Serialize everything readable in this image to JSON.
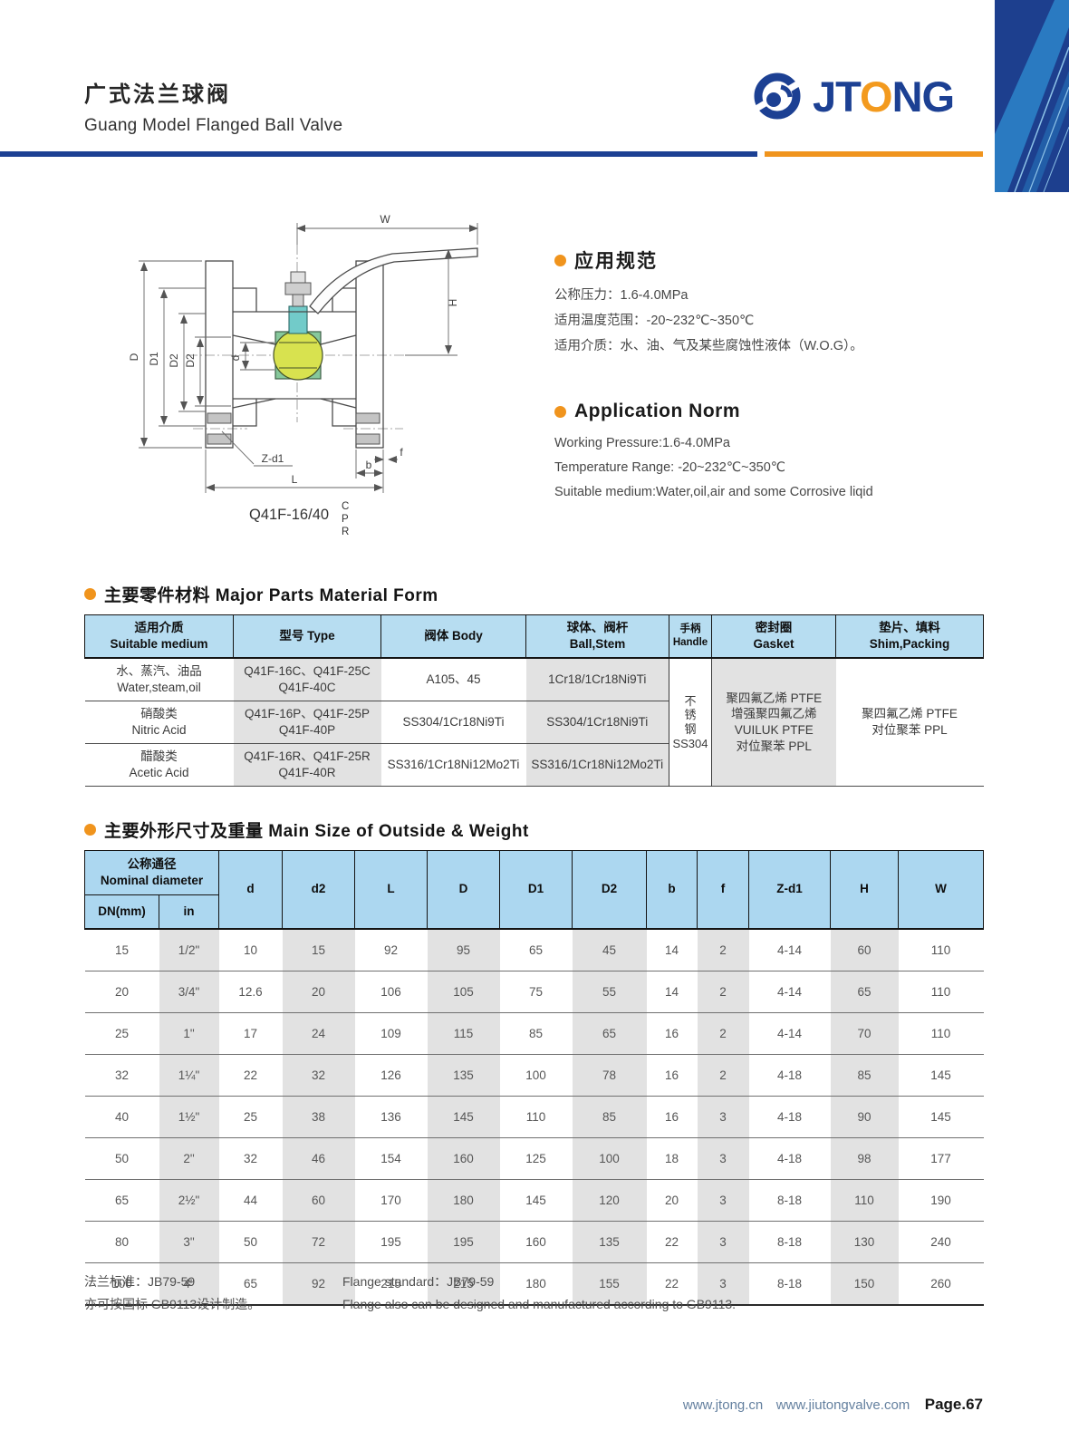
{
  "header": {
    "title_zh": "广式法兰球阀",
    "title_en": "Guang Model Flanged Ball Valve",
    "brand": {
      "jt": "JT",
      "o": "O",
      "ng": "NG"
    }
  },
  "colors": {
    "brand_blue": "#1c4093",
    "brand_orange": "#f0941d",
    "table1_header_blue": "#b7ddf1",
    "table2_header_blue": "#acd7f0",
    "cell_gray": "#e2e2e2"
  },
  "drawing": {
    "caption": "Q41F-16/40",
    "caption_stack": [
      "C",
      "P",
      "R"
    ],
    "dim_labels": {
      "w": "W",
      "h": "H",
      "d": "D",
      "d1": "D1",
      "d2": "D2",
      "d2b": "D2",
      "bore": "d",
      "zd1": "Z-d1",
      "l": "L",
      "b": "b",
      "f": "f"
    }
  },
  "norm_zh": {
    "title": "应用规范",
    "lines": "公称压力：1.6-4.0MPa\n适用温度范围：-20~232℃~350℃\n适用介质：水、油、气及某些腐蚀性液体（W.O.G）。"
  },
  "norm_en": {
    "title": "Application Norm",
    "lines": "Working Pressure:1.6-4.0MPa\nTemperature Range: -20~232℃~350℃\nSuitable medium:Water,oil,air and some Corrosive liqid"
  },
  "materials": {
    "title": "主要零件材料 Major Parts Material Form",
    "col_medium": "适用介质\nSuitable medium",
    "col_type": "型号 Type",
    "col_body": "阀体 Body",
    "col_ball": "球体、阀杆\nBall,Stem",
    "col_handle": "手柄\nHandle",
    "col_gasket": "密封圈\nGasket",
    "col_shim": "垫片、填料\nShim,Packing",
    "rows": [
      {
        "medium": "水、蒸汽、油品\nWater,steam,oil",
        "type": "Q41F-16C、Q41F-25C\nQ41F-40C",
        "body": "A105、45",
        "ball": "1Cr18/1Cr18Ni9Ti"
      },
      {
        "medium": "硝酸类\nNitric Acid",
        "type": "Q41F-16P、Q41F-25P\nQ41F-40P",
        "body": "SS304/1Cr18Ni9Ti",
        "ball": "SS304/1Cr18Ni9Ti"
      },
      {
        "medium": "醋酸类\nAcetic Acid",
        "type": "Q41F-16R、Q41F-25R\nQ41F-40R",
        "body": "SS316/1Cr18Ni12Mo2Ti",
        "ball": "SS316/1Cr18Ni12Mo2Ti"
      }
    ],
    "handle_merged": "不\n锈\n钢\nSS304",
    "gasket_merged": "聚四氟乙烯 PTFE\n增强聚四氟乙烯\nVUILUK PTFE\n对位聚苯 PPL",
    "shim_merged": "聚四氟乙烯 PTFE\n对位聚苯 PPL"
  },
  "sizes": {
    "title": "主要外形尺寸及重量 Main Size of Outside & Weight",
    "group_header": "公称通径\nNominal diameter",
    "columns": [
      "DN(mm)",
      "in",
      "d",
      "d2",
      "L",
      "D",
      "D1",
      "D2",
      "b",
      "f",
      "Z-d1",
      "H",
      "W"
    ],
    "rows": [
      [
        "15",
        "1/2\"",
        "10",
        "15",
        "92",
        "95",
        "65",
        "45",
        "14",
        "2",
        "4-14",
        "60",
        "110"
      ],
      [
        "20",
        "3/4\"",
        "12.6",
        "20",
        "106",
        "105",
        "75",
        "55",
        "14",
        "2",
        "4-14",
        "65",
        "110"
      ],
      [
        "25",
        "1\"",
        "17",
        "24",
        "109",
        "115",
        "85",
        "65",
        "16",
        "2",
        "4-14",
        "70",
        "110"
      ],
      [
        "32",
        "1¼\"",
        "22",
        "32",
        "126",
        "135",
        "100",
        "78",
        "16",
        "2",
        "4-18",
        "85",
        "145"
      ],
      [
        "40",
        "1½\"",
        "25",
        "38",
        "136",
        "145",
        "110",
        "85",
        "16",
        "3",
        "4-18",
        "90",
        "145"
      ],
      [
        "50",
        "2\"",
        "32",
        "46",
        "154",
        "160",
        "125",
        "100",
        "18",
        "3",
        "4-18",
        "98",
        "177"
      ],
      [
        "65",
        "2½\"",
        "44",
        "60",
        "170",
        "180",
        "145",
        "120",
        "20",
        "3",
        "8-18",
        "110",
        "190"
      ],
      [
        "80",
        "3\"",
        "50",
        "72",
        "195",
        "195",
        "160",
        "135",
        "22",
        "3",
        "8-18",
        "130",
        "240"
      ],
      [
        "100",
        "4\"",
        "65",
        "92",
        "215",
        "215",
        "180",
        "155",
        "22",
        "3",
        "8-18",
        "150",
        "260"
      ]
    ]
  },
  "notes": {
    "zh": "法兰标准：JB79-59\n亦可按国标 GB9113设计制造。",
    "en": "Flange standard：JB79-59\nFlange also can be designed and manufactured according to GB9113."
  },
  "footer": {
    "url1": "www.jtong.cn",
    "url2": "www.jiutongvalve.com",
    "page": "Page.67"
  }
}
